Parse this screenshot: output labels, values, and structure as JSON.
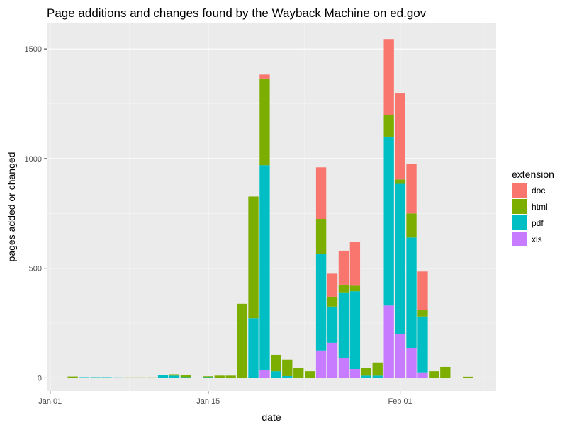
{
  "chart_data": {
    "type": "bar",
    "stacked": true,
    "title": "Page additions and changes found by the Wayback Machine on ed.gov",
    "xlabel": "date",
    "ylabel": "pages added or changed",
    "x_ticks": [
      {
        "label": "Jan 01",
        "day": 1
      },
      {
        "label": "Jan 15",
        "day": 15
      },
      {
        "label": "Feb 01",
        "day": 32
      }
    ],
    "y_ticks": [
      0,
      500,
      1000,
      1500
    ],
    "ylim": [
      -60,
      1620
    ],
    "xlim": [
      0.7,
      40.5
    ],
    "grid": true,
    "legend": {
      "title": "extension",
      "position": "right",
      "items": [
        {
          "name": "doc",
          "color": "#F8766D"
        },
        {
          "name": "html",
          "color": "#7CAE00"
        },
        {
          "name": "pdf",
          "color": "#00BFC4"
        },
        {
          "name": "xls",
          "color": "#C77CFF"
        }
      ]
    },
    "series_order": [
      "xls",
      "pdf",
      "html",
      "doc"
    ],
    "bars": [
      {
        "date": "Jan 03",
        "day": 3,
        "xls": 0,
        "pdf": 0,
        "html": 6,
        "doc": 0
      },
      {
        "date": "Jan 04",
        "day": 4,
        "xls": 0,
        "pdf": 3,
        "html": 0,
        "doc": 0
      },
      {
        "date": "Jan 05",
        "day": 5,
        "xls": 0,
        "pdf": 3,
        "html": 0,
        "doc": 0
      },
      {
        "date": "Jan 06",
        "day": 6,
        "xls": 0,
        "pdf": 3,
        "html": 0,
        "doc": 0
      },
      {
        "date": "Jan 07",
        "day": 7,
        "xls": 0,
        "pdf": 2,
        "html": 0,
        "doc": 0
      },
      {
        "date": "Jan 08",
        "day": 8,
        "xls": 0,
        "pdf": 0,
        "html": 2,
        "doc": 0
      },
      {
        "date": "Jan 09",
        "day": 9,
        "xls": 0,
        "pdf": 0,
        "html": 2,
        "doc": 0
      },
      {
        "date": "Jan 10",
        "day": 10,
        "xls": 0,
        "pdf": 0,
        "html": 2,
        "doc": 0
      },
      {
        "date": "Jan 11",
        "day": 11,
        "xls": 0,
        "pdf": 12,
        "html": 0,
        "doc": 0
      },
      {
        "date": "Jan 12",
        "day": 12,
        "xls": 0,
        "pdf": 10,
        "html": 6,
        "doc": 0
      },
      {
        "date": "Jan 13",
        "day": 13,
        "xls": 0,
        "pdf": 3,
        "html": 8,
        "doc": 0
      },
      {
        "date": "Jan 15",
        "day": 15,
        "xls": 0,
        "pdf": 3,
        "html": 4,
        "doc": 0
      },
      {
        "date": "Jan 16",
        "day": 16,
        "xls": 0,
        "pdf": 0,
        "html": 10,
        "doc": 0
      },
      {
        "date": "Jan 17",
        "day": 17,
        "xls": 0,
        "pdf": 0,
        "html": 10,
        "doc": 0
      },
      {
        "date": "Jan 18",
        "day": 18,
        "xls": 0,
        "pdf": 0,
        "html": 338,
        "doc": 0
      },
      {
        "date": "Jan 19",
        "day": 19,
        "xls": 0,
        "pdf": 272,
        "html": 555,
        "doc": 0
      },
      {
        "date": "Jan 20",
        "day": 20,
        "xls": 35,
        "pdf": 935,
        "html": 395,
        "doc": 18
      },
      {
        "date": "Jan 21",
        "day": 21,
        "xls": 0,
        "pdf": 30,
        "html": 75,
        "doc": 0
      },
      {
        "date": "Jan 22",
        "day": 22,
        "xls": 0,
        "pdf": 8,
        "html": 75,
        "doc": 0
      },
      {
        "date": "Jan 23",
        "day": 23,
        "xls": 0,
        "pdf": 0,
        "html": 45,
        "doc": 0
      },
      {
        "date": "Jan 24",
        "day": 24,
        "xls": 0,
        "pdf": 0,
        "html": 30,
        "doc": 0
      },
      {
        "date": "Jan 25",
        "day": 25,
        "xls": 125,
        "pdf": 440,
        "html": 160,
        "doc": 235
      },
      {
        "date": "Jan 26",
        "day": 26,
        "xls": 160,
        "pdf": 165,
        "html": 45,
        "doc": 105
      },
      {
        "date": "Jan 27",
        "day": 27,
        "xls": 90,
        "pdf": 300,
        "html": 35,
        "doc": 155
      },
      {
        "date": "Jan 28",
        "day": 28,
        "xls": 40,
        "pdf": 355,
        "html": 25,
        "doc": 200
      },
      {
        "date": "Jan 29",
        "day": 29,
        "xls": 0,
        "pdf": 10,
        "html": 35,
        "doc": 0
      },
      {
        "date": "Jan 30",
        "day": 30,
        "xls": 0,
        "pdf": 10,
        "html": 60,
        "doc": 0
      },
      {
        "date": "Jan 31",
        "day": 31,
        "xls": 330,
        "pdf": 770,
        "html": 100,
        "doc": 345
      },
      {
        "date": "Feb 01",
        "day": 32,
        "xls": 200,
        "pdf": 685,
        "html": 20,
        "doc": 395
      },
      {
        "date": "Feb 02",
        "day": 33,
        "xls": 135,
        "pdf": 505,
        "html": 110,
        "doc": 225
      },
      {
        "date": "Feb 03",
        "day": 34,
        "xls": 25,
        "pdf": 255,
        "html": 30,
        "doc": 175
      },
      {
        "date": "Feb 04",
        "day": 35,
        "xls": 0,
        "pdf": 0,
        "html": 30,
        "doc": 0
      },
      {
        "date": "Feb 05",
        "day": 36,
        "xls": 0,
        "pdf": 0,
        "html": 50,
        "doc": 0
      },
      {
        "date": "Feb 07",
        "day": 38,
        "xls": 0,
        "pdf": 0,
        "html": 5,
        "doc": 0
      }
    ]
  }
}
